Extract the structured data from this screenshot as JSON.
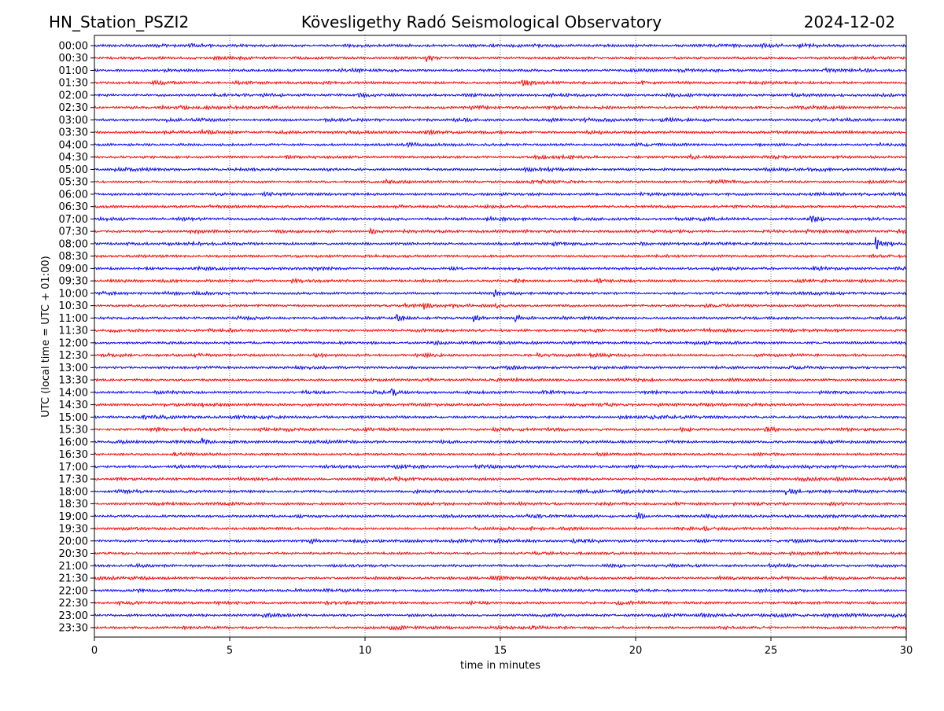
{
  "header": {
    "station": "HN_Station_PSZI2",
    "observatory": "Kövesligethy Radó Seismological Observatory",
    "date": "2024-12-02"
  },
  "chart_data": {
    "type": "line",
    "xlabel": "time in minutes",
    "ylabel": "UTC (local time = UTC + 01:00)",
    "xlim": [
      0,
      30
    ],
    "xticks": [
      "0",
      "5",
      "10",
      "15",
      "20",
      "25",
      "30"
    ],
    "grid": "vertical dotted at each x tick",
    "series_colors": [
      "#0000ff",
      "#ff0000"
    ],
    "rows": [
      "00:00",
      "00:30",
      "01:00",
      "01:30",
      "02:00",
      "02:30",
      "03:00",
      "03:30",
      "04:00",
      "04:30",
      "05:00",
      "05:30",
      "06:00",
      "06:30",
      "07:00",
      "07:30",
      "08:00",
      "08:30",
      "09:00",
      "09:30",
      "10:00",
      "10:30",
      "11:00",
      "11:30",
      "12:00",
      "12:30",
      "13:00",
      "13:30",
      "14:00",
      "14:30",
      "15:00",
      "15:30",
      "16:00",
      "16:30",
      "17:00",
      "17:30",
      "18:00",
      "18:30",
      "19:00",
      "19:30",
      "20:00",
      "20:30",
      "21:00",
      "21:30",
      "22:00",
      "22:30",
      "23:00",
      "23:30"
    ],
    "events": [
      {
        "row": "00:30",
        "minute": 12.3,
        "amplitude": 2.2
      },
      {
        "row": "01:30",
        "minute": 15.8,
        "amplitude": 1.8
      },
      {
        "row": "07:00",
        "minute": 26.5,
        "amplitude": 1.8
      },
      {
        "row": "07:30",
        "minute": 10.2,
        "amplitude": 2.0
      },
      {
        "row": "08:00",
        "minute": 28.9,
        "amplitude": 3.5
      },
      {
        "row": "09:30",
        "minute": 15.6,
        "amplitude": 1.8
      },
      {
        "row": "10:00",
        "minute": 14.8,
        "amplitude": 2.2
      },
      {
        "row": "10:30",
        "minute": 12.2,
        "amplitude": 1.8
      },
      {
        "row": "10:30",
        "minute": 14.8,
        "amplitude": 1.8
      },
      {
        "row": "11:00",
        "minute": 11.2,
        "amplitude": 2.5
      },
      {
        "row": "11:00",
        "minute": 14.0,
        "amplitude": 2.2
      },
      {
        "row": "11:00",
        "minute": 15.6,
        "amplitude": 2.0
      },
      {
        "row": "14:00",
        "minute": 11.0,
        "amplitude": 2.5
      },
      {
        "row": "15:30",
        "minute": 24.8,
        "amplitude": 1.6
      },
      {
        "row": "18:00",
        "minute": 25.6,
        "amplitude": 2.0
      },
      {
        "row": "19:00",
        "minute": 20.1,
        "amplitude": 2.0
      },
      {
        "row": "16:00",
        "minute": 4.0,
        "amplitude": 1.6
      },
      {
        "row": "20:00",
        "minute": 8.0,
        "amplitude": 1.5
      }
    ]
  }
}
